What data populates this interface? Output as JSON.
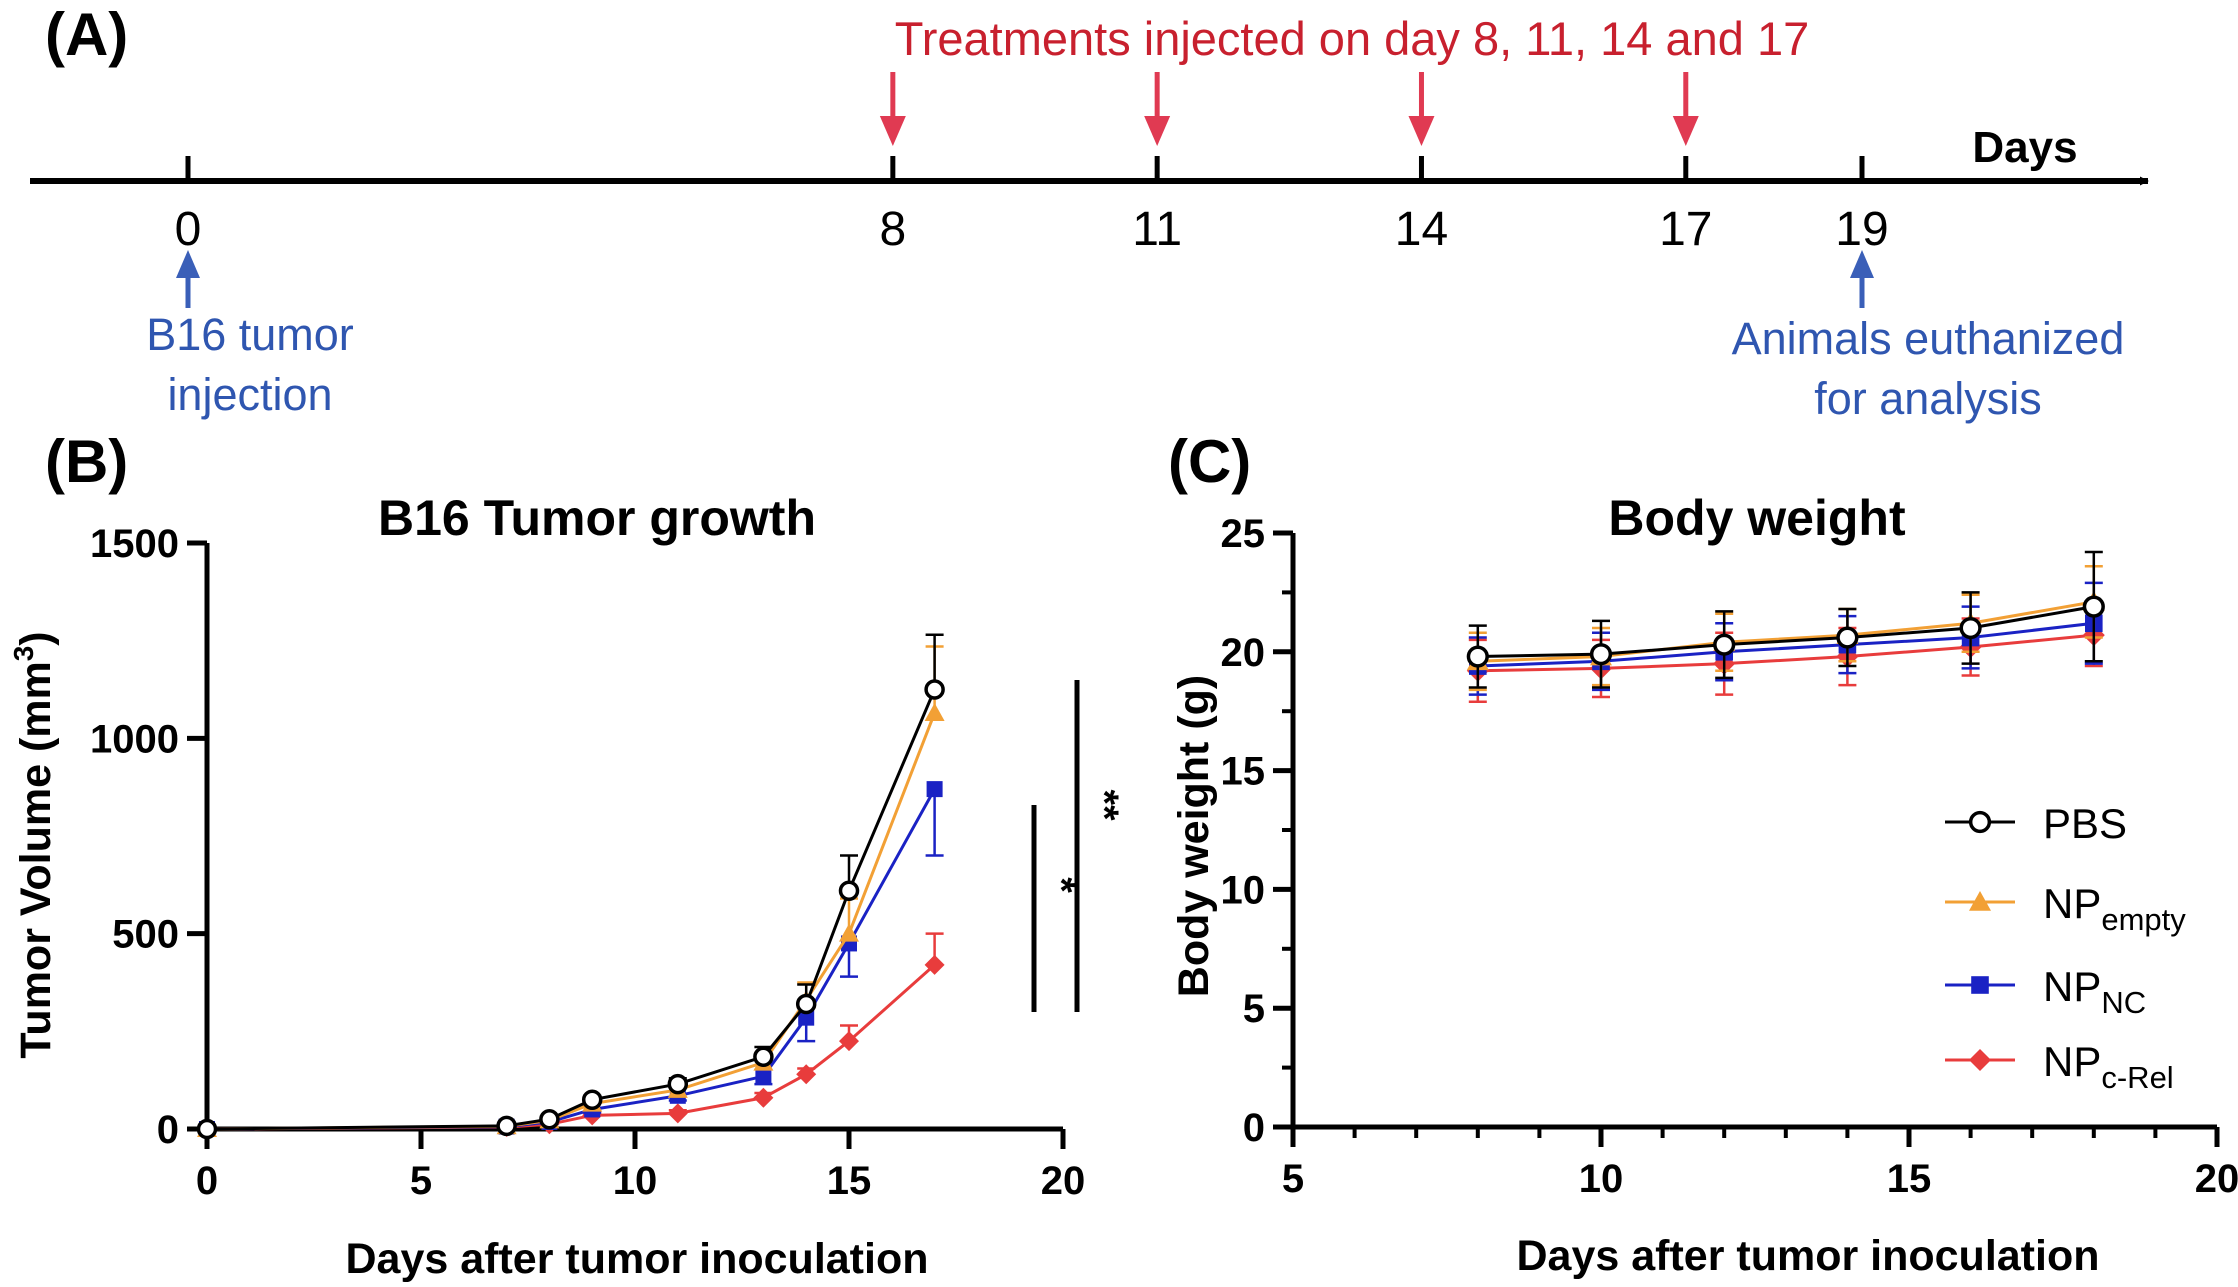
{
  "colors": {
    "axis": "#000000",
    "treatment": "#e03a52",
    "tumor_note": "#3a5fb8",
    "pbs": "#000000",
    "np_empty": "#f2a035",
    "np_nc": "#1a22c4",
    "np_crel": "#e83c3c"
  },
  "panel_a": {
    "label": "(A)",
    "treatment_text": "Treatments injected on day 8, 11, 14 and 17",
    "axis_label": "Days",
    "ticks": [
      0,
      8,
      11,
      14,
      17,
      19
    ],
    "treatment_days": [
      8,
      11,
      14,
      17
    ],
    "inoculation_note": [
      "B16 tumor",
      "injection"
    ],
    "euthanasia_note": [
      "Animals euthanized",
      "for analysis"
    ]
  },
  "panel_b": {
    "label": "(B)",
    "significance": [
      "*",
      "**"
    ]
  },
  "panel_c": {
    "label": "(C)"
  },
  "legend": {
    "entries": [
      {
        "base": "PBS",
        "sub": ""
      },
      {
        "base": "NP",
        "sub": "empty"
      },
      {
        "base": "NP",
        "sub": "NC"
      },
      {
        "base": "NP",
        "sub": "c-Rel"
      }
    ]
  },
  "chart_data": [
    {
      "type": "line",
      "title": "B16 Tumor growth",
      "xlabel": "Days after tumor inoculation",
      "ylabel": "Tumor Volume (mm",
      "ylabel_sup": "3",
      "ylabel_end": ")",
      "xlim": [
        0,
        20
      ],
      "ylim": [
        0,
        1500
      ],
      "xticks": [
        0,
        5,
        10,
        15,
        20
      ],
      "yticks": [
        0,
        500,
        1000,
        1500
      ],
      "series": [
        {
          "name": "PBS",
          "marker": "circle",
          "x": [
            0,
            7,
            8,
            9,
            11,
            13,
            14,
            15,
            17
          ],
          "values": [
            0,
            8,
            25,
            75,
            115,
            185,
            320,
            610,
            1125
          ],
          "errors": [
            0,
            5,
            6,
            10,
            15,
            25,
            50,
            90,
            140
          ]
        },
        {
          "name": "NP empty",
          "marker": "triangle",
          "x": [
            0,
            7,
            8,
            9,
            11,
            13,
            14,
            15,
            17
          ],
          "values": [
            0,
            7,
            22,
            65,
            100,
            170,
            330,
            500,
            1065
          ],
          "errors": [
            0,
            5,
            6,
            10,
            15,
            25,
            45,
            90,
            170
          ]
        },
        {
          "name": "NP NC",
          "marker": "square",
          "x": [
            0,
            7,
            8,
            9,
            11,
            13,
            14,
            15,
            17
          ],
          "values": [
            0,
            6,
            18,
            50,
            85,
            135,
            285,
            475,
            870
          ],
          "errors": [
            0,
            4,
            5,
            8,
            12,
            20,
            60,
            85,
            170
          ]
        },
        {
          "name": "NP c-Rel",
          "marker": "diamond",
          "x": [
            0,
            7,
            8,
            9,
            11,
            13,
            14,
            15,
            17
          ],
          "values": [
            0,
            5,
            12,
            35,
            40,
            80,
            140,
            225,
            420
          ],
          "errors": [
            0,
            3,
            4,
            6,
            8,
            12,
            15,
            40,
            80
          ]
        }
      ]
    },
    {
      "type": "line",
      "title": "Body weight",
      "xlabel": "Days after tumor inoculation",
      "ylabel": "Body weight (g)",
      "xlim": [
        5,
        20
      ],
      "ylim": [
        0,
        25
      ],
      "xticks": [
        5,
        10,
        15,
        20
      ],
      "yticks": [
        0,
        5,
        10,
        15,
        20,
        25
      ],
      "series": [
        {
          "name": "PBS",
          "marker": "circle",
          "x": [
            8,
            10,
            12,
            14,
            16,
            18
          ],
          "values": [
            19.8,
            19.9,
            20.3,
            20.6,
            21.0,
            21.9
          ],
          "errors": [
            1.3,
            1.4,
            1.4,
            1.2,
            1.5,
            2.3
          ]
        },
        {
          "name": "NP empty",
          "marker": "triangle",
          "x": [
            8,
            10,
            12,
            14,
            16,
            18
          ],
          "values": [
            19.6,
            19.8,
            20.4,
            20.7,
            21.2,
            22.1
          ],
          "errors": [
            1.2,
            1.2,
            1.2,
            1.1,
            1.2,
            1.5
          ]
        },
        {
          "name": "NP NC",
          "marker": "square",
          "x": [
            8,
            10,
            12,
            14,
            16,
            18
          ],
          "values": [
            19.4,
            19.6,
            20.0,
            20.3,
            20.6,
            21.2
          ],
          "errors": [
            1.2,
            1.2,
            1.2,
            1.2,
            1.3,
            1.7
          ]
        },
        {
          "name": "NP c-Rel",
          "marker": "diamond",
          "x": [
            8,
            10,
            12,
            14,
            16,
            18
          ],
          "values": [
            19.2,
            19.3,
            19.5,
            19.8,
            20.2,
            20.7
          ],
          "errors": [
            1.3,
            1.2,
            1.3,
            1.2,
            1.2,
            1.3
          ]
        }
      ]
    }
  ]
}
